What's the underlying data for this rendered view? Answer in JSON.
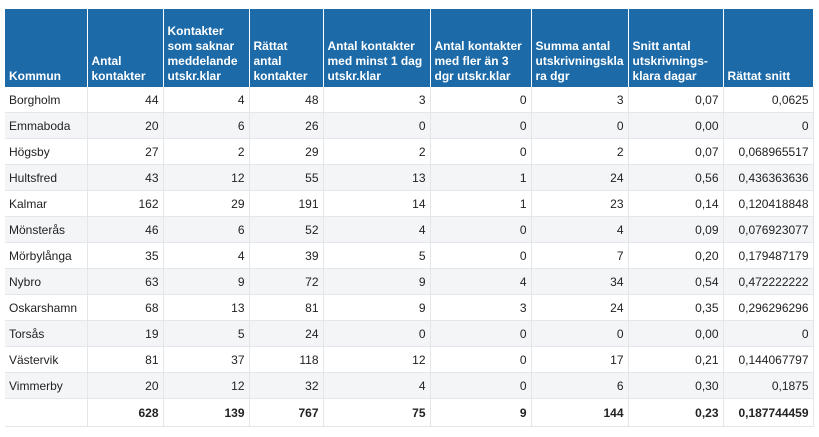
{
  "headers": [
    "Kommun",
    "Antal kontakter",
    "Kontakter som saknar meddelande utskr.klar",
    "Rättat antal kontakter",
    "Antal kontakter med minst 1 dag utskr.klar",
    "Antal kontakter med fler än 3 dgr utskr.klar",
    "Summa antal utskrivningskla ra dgr",
    "Snitt antal utskrivnings-klara dagar",
    "Rättat snitt"
  ],
  "rows": [
    [
      "Borgholm",
      "44",
      "4",
      "48",
      "3",
      "0",
      "3",
      "0,07",
      "0,0625"
    ],
    [
      "Emmaboda",
      "20",
      "6",
      "26",
      "0",
      "0",
      "0",
      "0,00",
      "0"
    ],
    [
      "Högsby",
      "27",
      "2",
      "29",
      "2",
      "0",
      "2",
      "0,07",
      "0,068965517"
    ],
    [
      "Hultsfred",
      "43",
      "12",
      "55",
      "13",
      "1",
      "24",
      "0,56",
      "0,436363636"
    ],
    [
      "Kalmar",
      "162",
      "29",
      "191",
      "14",
      "1",
      "23",
      "0,14",
      "0,120418848"
    ],
    [
      "Mönsterås",
      "46",
      "6",
      "52",
      "4",
      "0",
      "4",
      "0,09",
      "0,076923077"
    ],
    [
      "Mörbylånga",
      "35",
      "4",
      "39",
      "5",
      "0",
      "7",
      "0,20",
      "0,179487179"
    ],
    [
      "Nybro",
      "63",
      "9",
      "72",
      "9",
      "4",
      "34",
      "0,54",
      "0,472222222"
    ],
    [
      "Oskarshamn",
      "68",
      "13",
      "81",
      "9",
      "3",
      "24",
      "0,35",
      "0,296296296"
    ],
    [
      "Torsås",
      "19",
      "5",
      "24",
      "0",
      "0",
      "0",
      "0,00",
      "0"
    ],
    [
      "Västervik",
      "81",
      "37",
      "118",
      "12",
      "0",
      "17",
      "0,21",
      "0,144067797"
    ],
    [
      "Vimmerby",
      "20",
      "12",
      "32",
      "4",
      "0",
      "6",
      "0,30",
      "0,1875"
    ]
  ],
  "totals": [
    "",
    "628",
    "139",
    "767",
    "75",
    "9",
    "144",
    "0,23",
    "0,187744459"
  ],
  "colors": {
    "header_bg": "#1c6aa8",
    "header_text": "#ffffff",
    "alt_row": "#f3f5f7",
    "grid": "#e3e6ea"
  }
}
